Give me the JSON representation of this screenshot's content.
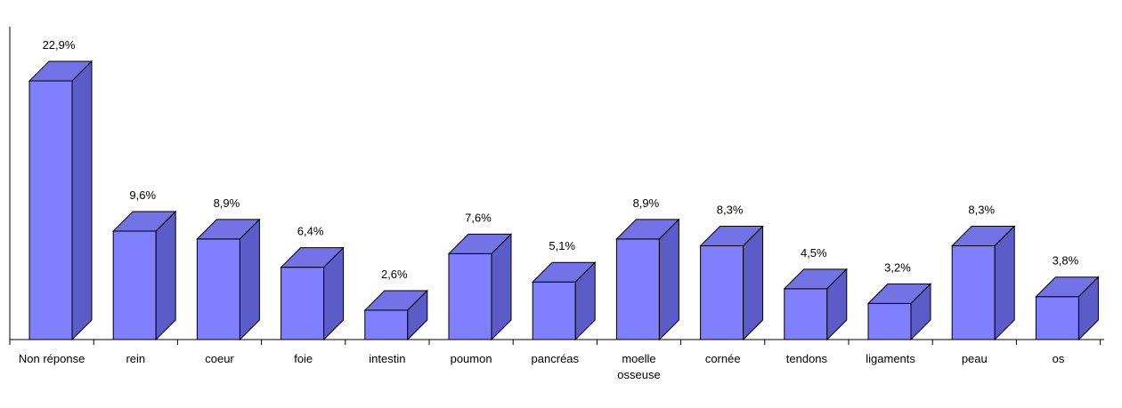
{
  "chart_data": {
    "type": "bar",
    "style": "3d",
    "categories": [
      "Non réponse",
      "rein",
      "coeur",
      "foie",
      "intestin",
      "poumon",
      "pancréas",
      "moelle osseuse",
      "cornée",
      "tendons",
      "ligaments",
      "peau",
      "os"
    ],
    "category_lines": [
      [
        "Non réponse"
      ],
      [
        "rein"
      ],
      [
        "coeur"
      ],
      [
        "foie"
      ],
      [
        "intestin"
      ],
      [
        "poumon"
      ],
      [
        "pancréas"
      ],
      [
        "moelle",
        "osseuse"
      ],
      [
        "cornée"
      ],
      [
        "tendons"
      ],
      [
        "ligaments"
      ],
      [
        "peau"
      ],
      [
        "os"
      ]
    ],
    "values": [
      22.9,
      9.6,
      8.9,
      6.4,
      2.6,
      7.6,
      5.1,
      8.9,
      8.3,
      4.5,
      3.2,
      8.3,
      3.8
    ],
    "value_labels": [
      "22,9%",
      "9,6%",
      "8,9%",
      "6,4%",
      "2,6%",
      "7,6%",
      "5,1%",
      "8,9%",
      "8,3%",
      "4,5%",
      "3,2%",
      "8,3%",
      "3,8%"
    ],
    "unit": "%",
    "ylim": [
      0,
      25
    ],
    "grid": false,
    "legend": "none",
    "colors": {
      "front": "#8080ff",
      "top": "#7373e6",
      "side": "#5c5cc8",
      "stroke": "#000000"
    }
  }
}
